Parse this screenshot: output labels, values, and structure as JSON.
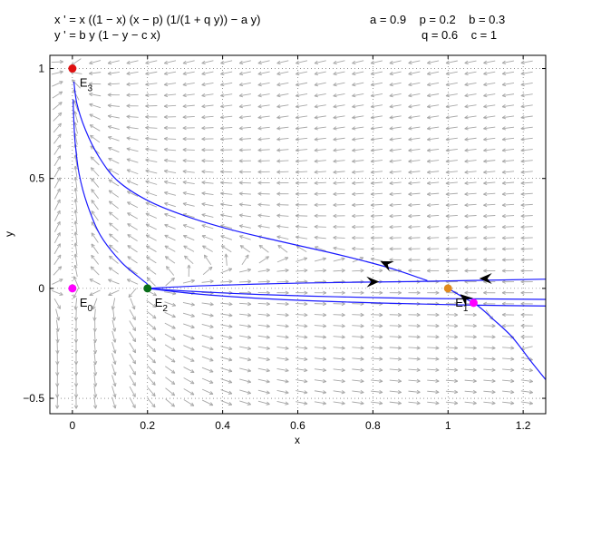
{
  "header": {
    "eq1": "x ' = x ((1 − x) (x − p) (1/(1 + q y)) − a y)",
    "eq2": "y ' = b y (1 − y − c x)",
    "params_row1": "a = 0.9    p = 0.2    b = 0.3",
    "params_row2": "q = 0.6    c = 1"
  },
  "chart_data": {
    "type": "phase-portrait",
    "xlabel": "x",
    "ylabel": "y",
    "xlim": [
      -0.06,
      1.26
    ],
    "ylim": [
      -0.57,
      1.06
    ],
    "xticks": [
      0,
      0.2,
      0.4,
      0.6,
      0.8,
      1,
      1.2
    ],
    "xtick_labels": [
      "0",
      "0.2",
      "0.4",
      "0.6",
      "0.8",
      "1",
      "1.2"
    ],
    "yticks": [
      -0.5,
      0,
      0.5,
      1
    ],
    "ytick_labels": [
      "−0.5",
      "0",
      "0.5",
      "1"
    ],
    "grid": "dotted",
    "params": {
      "a": 0.9,
      "p": 0.2,
      "b": 0.3,
      "q": 0.6,
      "c": 1
    },
    "equilibria": [
      {
        "name": "E",
        "sub": "0",
        "x": 0,
        "y": 0,
        "color": "#ff00ff"
      },
      {
        "name": "E",
        "sub": "1",
        "x": 1,
        "y": 0,
        "color": "#e08a1e"
      },
      {
        "name": "E",
        "sub": "2",
        "x": 0.2,
        "y": 0,
        "color": "#0a6e1a"
      },
      {
        "name": "E",
        "sub": "3",
        "x": 0,
        "y": 1,
        "color": "#e01010"
      }
    ],
    "extra_points": [
      {
        "x": 1.068,
        "y": -0.066,
        "color": "#ff00ff"
      }
    ],
    "trajectories": [
      {
        "color": "#1a1aff",
        "points": [
          [
            0.945,
            0.035
          ],
          [
            0.86,
            0.085
          ],
          [
            0.78,
            0.123
          ],
          [
            0.68,
            0.165
          ],
          [
            0.55,
            0.215
          ],
          [
            0.42,
            0.268
          ],
          [
            0.3,
            0.33
          ],
          [
            0.2,
            0.4
          ],
          [
            0.12,
            0.49
          ],
          [
            0.07,
            0.6
          ],
          [
            0.035,
            0.72
          ],
          [
            0.012,
            0.84
          ],
          [
            0.004,
            0.94
          ]
        ]
      },
      {
        "color": "#1a1aff",
        "points": [
          [
            0.2,
            0.0
          ],
          [
            0.2,
            0.018
          ],
          [
            0.185,
            0.04
          ],
          [
            0.13,
            0.12
          ],
          [
            0.075,
            0.24
          ],
          [
            0.04,
            0.38
          ],
          [
            0.018,
            0.52
          ],
          [
            0.007,
            0.67
          ],
          [
            0.003,
            0.8
          ],
          [
            0.002,
            0.86
          ]
        ]
      },
      {
        "color": "#1a1aff",
        "points": [
          [
            0.2,
            0.0
          ],
          [
            0.35,
            0.012
          ],
          [
            0.55,
            0.022
          ],
          [
            0.75,
            0.028
          ],
          [
            0.9,
            0.031
          ],
          [
            1.1,
            0.037
          ],
          [
            1.26,
            0.042
          ]
        ]
      },
      {
        "color": "#1a1aff",
        "points": [
          [
            0.2,
            0.0
          ],
          [
            0.3,
            -0.012
          ],
          [
            0.5,
            -0.028
          ],
          [
            0.7,
            -0.038
          ],
          [
            0.9,
            -0.045
          ],
          [
            1.1,
            -0.048
          ],
          [
            1.26,
            -0.05
          ]
        ]
      },
      {
        "color": "#1a1aff",
        "points": [
          [
            0.2,
            0.0
          ],
          [
            0.35,
            -0.028
          ],
          [
            0.55,
            -0.05
          ],
          [
            0.75,
            -0.063
          ],
          [
            0.95,
            -0.072
          ],
          [
            1.1,
            -0.077
          ],
          [
            1.26,
            -0.08
          ]
        ]
      },
      {
        "color": "#1a1aff",
        "points": [
          [
            1.26,
            -0.415
          ],
          [
            1.22,
            -0.33
          ],
          [
            1.17,
            -0.22
          ],
          [
            1.12,
            -0.14
          ],
          [
            1.08,
            -0.08
          ],
          [
            1.045,
            -0.045
          ],
          [
            1.02,
            -0.02
          ],
          [
            1.005,
            -0.005
          ]
        ]
      }
    ],
    "arrows": [
      {
        "x": 0.835,
        "y": 0.112,
        "dx": -1.0,
        "dy": 0.45
      },
      {
        "x": 0.8,
        "y": 0.03,
        "dx": 1.0,
        "dy": 0.02
      },
      {
        "x": 1.1,
        "y": 0.045,
        "dx": -1.0,
        "dy": 0.0
      },
      {
        "x": 1.045,
        "y": -0.045,
        "dx": -0.7,
        "dy": 0.6
      }
    ],
    "field_color": "#a8a8a8",
    "trajectory_color": "#1a1aff"
  }
}
